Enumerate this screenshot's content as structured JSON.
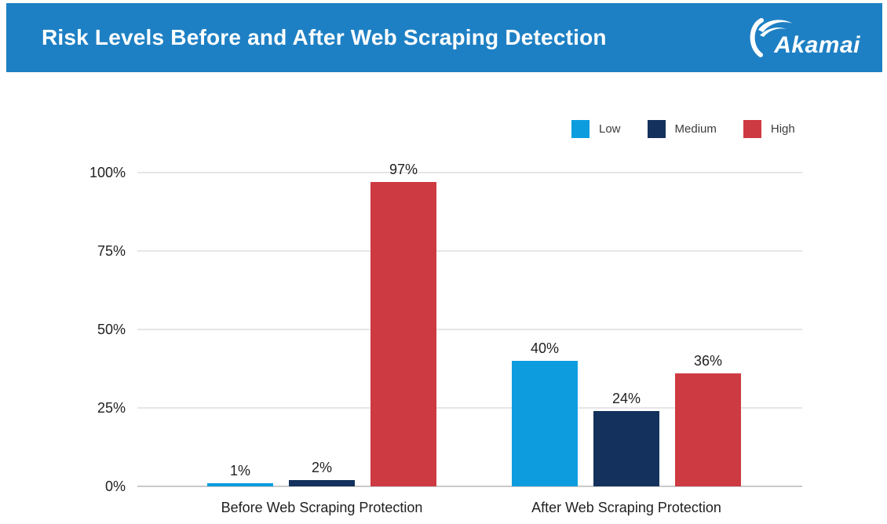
{
  "header": {
    "title": "Risk Levels Before and After Web Scraping Detection",
    "logo_text": "Akamai",
    "background_color": "#1e80c4",
    "text_color": "#ffffff"
  },
  "legend": {
    "items": [
      {
        "label": "Low",
        "color": "#0d9ddf"
      },
      {
        "label": "Medium",
        "color": "#13315c"
      },
      {
        "label": "High",
        "color": "#ce3a41"
      }
    ]
  },
  "chart_data": {
    "type": "bar",
    "title": "Risk Levels Before and After Web Scraping Detection",
    "categories": [
      "Before Web Scraping Protection",
      "After Web Scraping Protection"
    ],
    "series": [
      {
        "name": "Low",
        "values": [
          1,
          40
        ],
        "color": "#0d9ddf"
      },
      {
        "name": "Medium",
        "values": [
          2,
          24
        ],
        "color": "#13315c"
      },
      {
        "name": "High",
        "values": [
          97,
          36
        ],
        "color": "#ce3a41"
      }
    ],
    "value_suffix": "%",
    "data_labels": [
      [
        "1%",
        "2%",
        "97%"
      ],
      [
        "40%",
        "24%",
        "36%"
      ]
    ],
    "y_ticks": [
      0,
      25,
      50,
      75,
      100
    ],
    "y_tick_labels": [
      "0%",
      "25%",
      "50%",
      "75%",
      "100%"
    ],
    "ylim": [
      0,
      100
    ],
    "xlabel": "",
    "ylabel": "",
    "grid": true,
    "legend_position": "top-right",
    "colors": {
      "grid": "#e6e6e6",
      "axis_line": "#c9c9c9",
      "text": "#212121"
    }
  }
}
